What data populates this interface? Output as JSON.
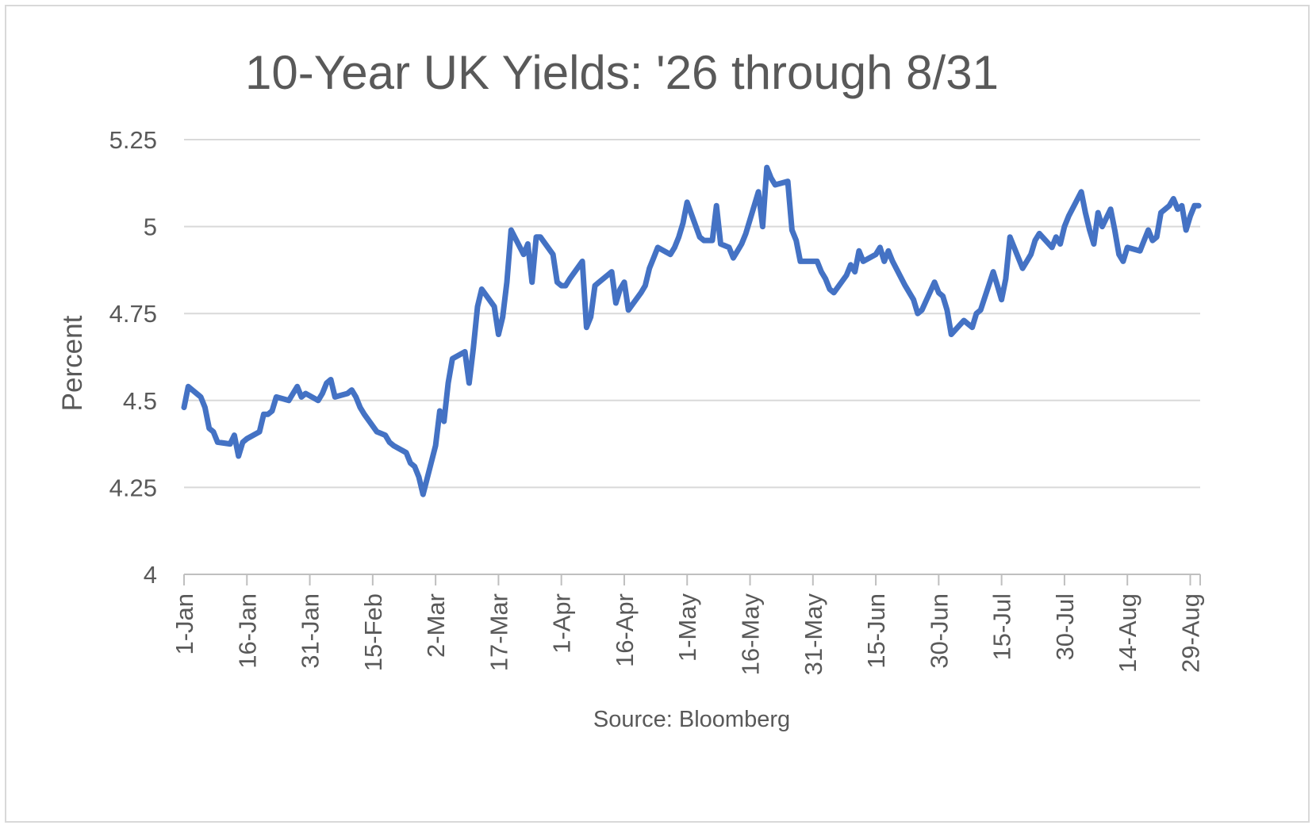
{
  "chart_data": {
    "type": "line",
    "title": "10-Year UK Yields: '26 through 8/31",
    "xlabel": "Source: Bloomberg",
    "ylabel": "Percent",
    "ylim": [
      4,
      5.25
    ],
    "yticks": [
      "4",
      "4.25",
      "4.5",
      "4.75",
      "5",
      "5.25"
    ],
    "xticks": [
      "1-Jan",
      "16-Jan",
      "31-Jan",
      "15-Feb",
      "2-Mar",
      "17-Mar",
      "1-Apr",
      "16-Apr",
      "1-May",
      "16-May",
      "31-May",
      "15-Jun",
      "30-Jun",
      "15-Jul",
      "30-Jul",
      "14-Aug",
      "29-Aug"
    ],
    "grid": true,
    "legend": "none",
    "series": [
      {
        "color": "#4472c4",
        "points": [
          [
            "2026-01-01",
            4.48
          ],
          [
            "2026-01-02",
            4.54
          ],
          [
            "2026-01-05",
            4.51
          ],
          [
            "2026-01-06",
            4.48
          ],
          [
            "2026-01-07",
            4.42
          ],
          [
            "2026-01-08",
            4.41
          ],
          [
            "2026-01-09",
            4.38
          ],
          [
            "2026-01-12",
            4.375
          ],
          [
            "2026-01-13",
            4.4
          ],
          [
            "2026-01-14",
            4.34
          ],
          [
            "2026-01-15",
            4.38
          ],
          [
            "2026-01-16",
            4.39
          ],
          [
            "2026-01-19",
            4.41
          ],
          [
            "2026-01-20",
            4.46
          ],
          [
            "2026-01-21",
            4.46
          ],
          [
            "2026-01-22",
            4.47
          ],
          [
            "2026-01-23",
            4.51
          ],
          [
            "2026-01-26",
            4.5
          ],
          [
            "2026-01-27",
            4.52
          ],
          [
            "2026-01-28",
            4.54
          ],
          [
            "2026-01-29",
            4.51
          ],
          [
            "2026-01-30",
            4.52
          ],
          [
            "2026-02-02",
            4.5
          ],
          [
            "2026-02-03",
            4.52
          ],
          [
            "2026-02-04",
            4.55
          ],
          [
            "2026-02-05",
            4.56
          ],
          [
            "2026-02-06",
            4.51
          ],
          [
            "2026-02-09",
            4.52
          ],
          [
            "2026-02-10",
            4.53
          ],
          [
            "2026-02-11",
            4.51
          ],
          [
            "2026-02-12",
            4.48
          ],
          [
            "2026-02-13",
            4.46
          ],
          [
            "2026-02-16",
            4.41
          ],
          [
            "2026-02-17",
            4.405
          ],
          [
            "2026-02-18",
            4.4
          ],
          [
            "2026-02-19",
            4.38
          ],
          [
            "2026-02-20",
            4.37
          ],
          [
            "2026-02-23",
            4.35
          ],
          [
            "2026-02-24",
            4.32
          ],
          [
            "2026-02-25",
            4.31
          ],
          [
            "2026-02-26",
            4.28
          ],
          [
            "2026-02-27",
            4.23
          ],
          [
            "2026-03-02",
            4.37
          ],
          [
            "2026-03-03",
            4.47
          ],
          [
            "2026-03-04",
            4.44
          ],
          [
            "2026-03-05",
            4.55
          ],
          [
            "2026-03-06",
            4.62
          ],
          [
            "2026-03-09",
            4.64
          ],
          [
            "2026-03-10",
            4.55
          ],
          [
            "2026-03-11",
            4.65
          ],
          [
            "2026-03-12",
            4.77
          ],
          [
            "2026-03-13",
            4.82
          ],
          [
            "2026-03-16",
            4.77
          ],
          [
            "2026-03-17",
            4.69
          ],
          [
            "2026-03-18",
            4.74
          ],
          [
            "2026-03-19",
            4.84
          ],
          [
            "2026-03-20",
            4.99
          ],
          [
            "2026-03-23",
            4.92
          ],
          [
            "2026-03-24",
            4.95
          ],
          [
            "2026-03-25",
            4.84
          ],
          [
            "2026-03-26",
            4.97
          ],
          [
            "2026-03-27",
            4.97
          ],
          [
            "2026-03-30",
            4.92
          ],
          [
            "2026-03-31",
            4.84
          ],
          [
            "2026-04-01",
            4.83
          ],
          [
            "2026-04-02",
            4.83
          ],
          [
            "2026-04-03",
            4.85
          ],
          [
            "2026-04-06",
            4.9
          ],
          [
            "2026-04-07",
            4.71
          ],
          [
            "2026-04-08",
            4.74
          ],
          [
            "2026-04-09",
            4.83
          ],
          [
            "2026-04-10",
            4.84
          ],
          [
            "2026-04-13",
            4.87
          ],
          [
            "2026-04-14",
            4.78
          ],
          [
            "2026-04-15",
            4.82
          ],
          [
            "2026-04-16",
            4.84
          ],
          [
            "2026-04-17",
            4.76
          ],
          [
            "2026-04-20",
            4.81
          ],
          [
            "2026-04-21",
            4.83
          ],
          [
            "2026-04-22",
            4.88
          ],
          [
            "2026-04-23",
            4.91
          ],
          [
            "2026-04-24",
            4.94
          ],
          [
            "2026-04-27",
            4.92
          ],
          [
            "2026-04-28",
            4.94
          ],
          [
            "2026-04-29",
            4.97
          ],
          [
            "2026-04-30",
            5.01
          ],
          [
            "2026-05-01",
            5.07
          ],
          [
            "2026-05-04",
            4.97
          ],
          [
            "2026-05-05",
            4.96
          ],
          [
            "2026-05-06",
            4.96
          ],
          [
            "2026-05-07",
            4.96
          ],
          [
            "2026-05-08",
            5.06
          ],
          [
            "2026-05-09",
            4.95
          ],
          [
            "2026-05-11",
            4.94
          ],
          [
            "2026-05-12",
            4.91
          ],
          [
            "2026-05-13",
            4.93
          ],
          [
            "2026-05-14",
            4.95
          ],
          [
            "2026-05-15",
            4.98
          ],
          [
            "2026-05-18",
            5.1
          ],
          [
            "2026-05-19",
            5.0
          ],
          [
            "2026-05-20",
            5.17
          ],
          [
            "2026-05-21",
            5.14
          ],
          [
            "2026-05-22",
            5.12
          ],
          [
            "2026-05-25",
            5.13
          ],
          [
            "2026-05-26",
            4.99
          ],
          [
            "2026-05-27",
            4.96
          ],
          [
            "2026-05-28",
            4.9
          ],
          [
            "2026-05-29",
            4.9
          ],
          [
            "2026-06-01",
            4.9
          ],
          [
            "2026-06-02",
            4.87
          ],
          [
            "2026-06-03",
            4.85
          ],
          [
            "2026-06-04",
            4.82
          ],
          [
            "2026-06-05",
            4.81
          ],
          [
            "2026-06-08",
            4.86
          ],
          [
            "2026-06-09",
            4.89
          ],
          [
            "2026-06-10",
            4.87
          ],
          [
            "2026-06-11",
            4.93
          ],
          [
            "2026-06-12",
            4.9
          ],
          [
            "2026-06-15",
            4.92
          ],
          [
            "2026-06-16",
            4.94
          ],
          [
            "2026-06-17",
            4.9
          ],
          [
            "2026-06-18",
            4.93
          ],
          [
            "2026-06-19",
            4.9
          ],
          [
            "2026-06-22",
            4.83
          ],
          [
            "2026-06-23",
            4.81
          ],
          [
            "2026-06-24",
            4.79
          ],
          [
            "2026-06-25",
            4.75
          ],
          [
            "2026-06-26",
            4.76
          ],
          [
            "2026-06-29",
            4.84
          ],
          [
            "2026-06-30",
            4.81
          ],
          [
            "2026-07-01",
            4.8
          ],
          [
            "2026-07-02",
            4.76
          ],
          [
            "2026-07-03",
            4.69
          ],
          [
            "2026-07-06",
            4.73
          ],
          [
            "2026-07-07",
            4.72
          ],
          [
            "2026-07-08",
            4.71
          ],
          [
            "2026-07-09",
            4.75
          ],
          [
            "2026-07-10",
            4.76
          ],
          [
            "2026-07-13",
            4.87
          ],
          [
            "2026-07-14",
            4.83
          ],
          [
            "2026-07-15",
            4.79
          ],
          [
            "2026-07-16",
            4.85
          ],
          [
            "2026-07-17",
            4.97
          ],
          [
            "2026-07-20",
            4.88
          ],
          [
            "2026-07-21",
            4.9
          ],
          [
            "2026-07-22",
            4.92
          ],
          [
            "2026-07-23",
            4.96
          ],
          [
            "2026-07-24",
            4.98
          ],
          [
            "2026-07-27",
            4.94
          ],
          [
            "2026-07-28",
            4.97
          ],
          [
            "2026-07-29",
            4.95
          ],
          [
            "2026-07-30",
            5.0
          ],
          [
            "2026-07-31",
            5.03
          ],
          [
            "2026-08-03",
            5.1
          ],
          [
            "2026-08-04",
            5.04
          ],
          [
            "2026-08-05",
            4.99
          ],
          [
            "2026-08-06",
            4.95
          ],
          [
            "2026-08-07",
            5.04
          ],
          [
            "2026-08-08",
            5.0
          ],
          [
            "2026-08-10",
            5.05
          ],
          [
            "2026-08-11",
            4.99
          ],
          [
            "2026-08-12",
            4.92
          ],
          [
            "2026-08-13",
            4.9
          ],
          [
            "2026-08-14",
            4.94
          ],
          [
            "2026-08-17",
            4.93
          ],
          [
            "2026-08-18",
            4.96
          ],
          [
            "2026-08-19",
            4.99
          ],
          [
            "2026-08-20",
            4.96
          ],
          [
            "2026-08-21",
            4.97
          ],
          [
            "2026-08-22",
            5.04
          ],
          [
            "2026-08-24",
            5.06
          ],
          [
            "2026-08-25",
            5.08
          ],
          [
            "2026-08-26",
            5.05
          ],
          [
            "2026-08-27",
            5.06
          ],
          [
            "2026-08-28",
            4.99
          ],
          [
            "2026-08-29",
            5.03
          ],
          [
            "2026-08-30",
            5.06
          ],
          [
            "2026-08-31",
            5.06
          ]
        ]
      }
    ]
  }
}
